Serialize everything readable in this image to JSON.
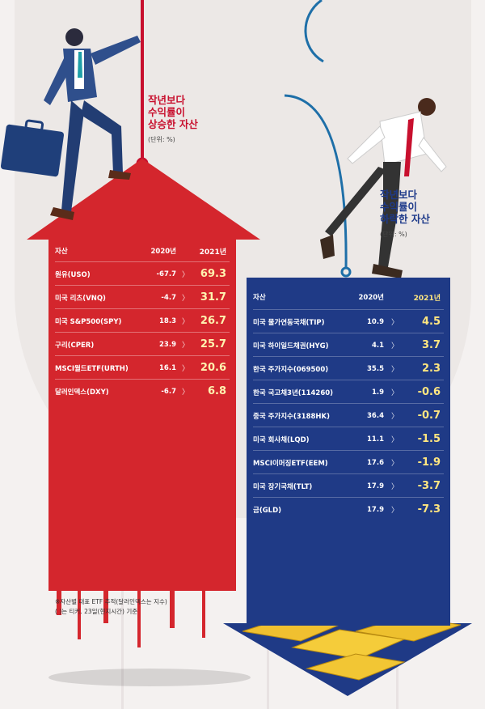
{
  "up": {
    "title_lines": [
      "작년보다",
      "수익률이",
      "상승한 자산"
    ],
    "unit": "(단위: %)",
    "headers": {
      "asset": "자산",
      "y2020": "2020년",
      "y2021": "2021년"
    }
  },
  "down": {
    "title_lines": [
      "작년보다",
      "수익률이",
      "하락한 자산"
    ],
    "unit": "(단위: %)",
    "headers": {
      "asset": "자산",
      "y2020": "2020년",
      "y2021": "2021년"
    }
  },
  "arrow_glyph": "〉",
  "footnote": [
    "※자산별 대표 ETF 추적(달러인덱스는 지수)",
    "( )는 티커. 23일(현지시간) 기준"
  ],
  "colors": {
    "up": "#d4262d",
    "down": "#1f3a86",
    "highlight_up": "#fff3b0",
    "highlight_down": "#ffe680"
  },
  "chart_data": [
    {
      "type": "table",
      "title": "작년보다 수익률이 상승한 자산",
      "unit": "(단위: %)",
      "columns": [
        "자산",
        "2020년",
        "2021년"
      ],
      "rows": [
        {
          "asset": "원유(USO)",
          "y2020": "-67.7",
          "y2021": "69.3"
        },
        {
          "asset": "미국 리츠(VNQ)",
          "y2020": "-4.7",
          "y2021": "31.7"
        },
        {
          "asset": "미국 S&P500(SPY)",
          "y2020": "18.3",
          "y2021": "26.7"
        },
        {
          "asset": "구리(CPER)",
          "y2020": "23.9",
          "y2021": "25.7"
        },
        {
          "asset": "MSCI월드ETF(URTH)",
          "y2020": "16.1",
          "y2021": "20.6"
        },
        {
          "asset": "달러인덱스(DXY)",
          "y2020": "-6.7",
          "y2021": "6.8"
        }
      ]
    },
    {
      "type": "table",
      "title": "작년보다 수익률이 하락한 자산",
      "unit": "(단위: %)",
      "columns": [
        "자산",
        "2020년",
        "2021년"
      ],
      "rows": [
        {
          "asset": "미국 물가연동국채(TIP)",
          "y2020": "10.9",
          "y2021": "4.5"
        },
        {
          "asset": "미국 하이일드채권(HYG)",
          "y2020": "4.1",
          "y2021": "3.7"
        },
        {
          "asset": "한국 주가지수(069500)",
          "y2020": "35.5",
          "y2021": "2.3"
        },
        {
          "asset": "한국 국고채3년(114260)",
          "y2020": "1.9",
          "y2021": "-0.6"
        },
        {
          "asset": "중국 주가지수(3188HK)",
          "y2020": "36.4",
          "y2021": "-0.7"
        },
        {
          "asset": "미국 회사채(LQD)",
          "y2020": "11.1",
          "y2021": "-1.5"
        },
        {
          "asset": "MSCI이머징ETF(EEM)",
          "y2020": "17.6",
          "y2021": "-1.9"
        },
        {
          "asset": "미국 장기국채(TLT)",
          "y2020": "17.9",
          "y2021": "-3.7"
        },
        {
          "asset": "금(GLD)",
          "y2020": "17.9",
          "y2021": "-7.3"
        }
      ]
    }
  ]
}
